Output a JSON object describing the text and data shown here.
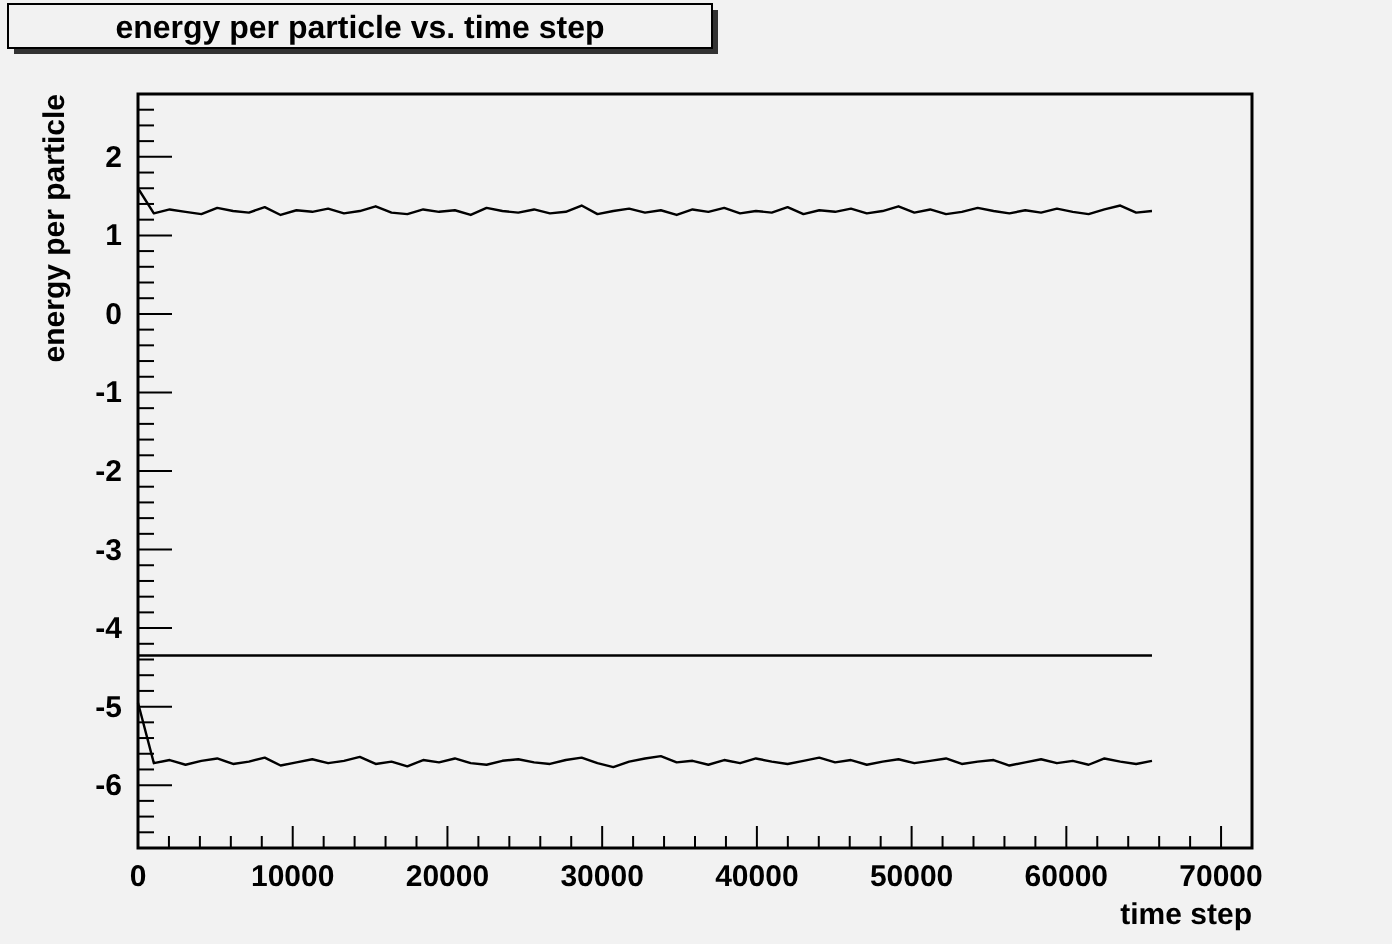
{
  "chart_data": {
    "type": "line",
    "title": "energy per particle vs. time step",
    "xlabel": "time step",
    "ylabel": "energy per particle",
    "x": [
      0,
      1024,
      2048,
      3072,
      4096,
      5120,
      6144,
      7168,
      8192,
      9216,
      10240,
      11264,
      12288,
      13312,
      14336,
      15360,
      16384,
      17408,
      18432,
      19456,
      20480,
      21504,
      22528,
      23552,
      24576,
      25600,
      26624,
      27648,
      28672,
      29696,
      30720,
      31744,
      32768,
      33792,
      34816,
      35840,
      36864,
      37888,
      38912,
      39936,
      40960,
      41984,
      43008,
      44032,
      45056,
      46080,
      47104,
      48128,
      49152,
      50176,
      51200,
      52224,
      53248,
      54272,
      55296,
      56320,
      57344,
      58368,
      59392,
      60416,
      61440,
      62464,
      63488,
      64512,
      65536
    ],
    "series": [
      {
        "color": "#000000",
        "values": [
          1.6,
          1.28,
          1.33,
          1.3,
          1.27,
          1.35,
          1.31,
          1.29,
          1.36,
          1.26,
          1.32,
          1.3,
          1.34,
          1.28,
          1.31,
          1.37,
          1.29,
          1.27,
          1.33,
          1.3,
          1.32,
          1.26,
          1.35,
          1.31,
          1.29,
          1.33,
          1.28,
          1.3,
          1.38,
          1.27,
          1.31,
          1.34,
          1.29,
          1.32,
          1.26,
          1.33,
          1.3,
          1.35,
          1.28,
          1.31,
          1.29,
          1.36,
          1.27,
          1.32,
          1.3,
          1.34,
          1.28,
          1.31,
          1.37,
          1.29,
          1.33,
          1.27,
          1.3,
          1.35,
          1.31,
          1.28,
          1.32,
          1.29,
          1.34,
          1.3,
          1.27,
          1.33,
          1.38,
          1.29,
          1.31
        ]
      },
      {
        "color": "#000000",
        "x": [
          0,
          65536
        ],
        "values": [
          -4.35,
          -4.35
        ]
      },
      {
        "color": "#000000",
        "values": [
          -4.95,
          -5.72,
          -5.68,
          -5.74,
          -5.69,
          -5.66,
          -5.73,
          -5.7,
          -5.65,
          -5.75,
          -5.71,
          -5.67,
          -5.72,
          -5.69,
          -5.64,
          -5.73,
          -5.7,
          -5.76,
          -5.68,
          -5.71,
          -5.66,
          -5.72,
          -5.74,
          -5.69,
          -5.67,
          -5.71,
          -5.73,
          -5.68,
          -5.65,
          -5.72,
          -5.77,
          -5.7,
          -5.66,
          -5.63,
          -5.71,
          -5.69,
          -5.74,
          -5.68,
          -5.72,
          -5.66,
          -5.7,
          -5.73,
          -5.69,
          -5.65,
          -5.71,
          -5.68,
          -5.74,
          -5.7,
          -5.67,
          -5.72,
          -5.69,
          -5.66,
          -5.73,
          -5.7,
          -5.68,
          -5.75,
          -5.71,
          -5.67,
          -5.72,
          -5.69,
          -5.74,
          -5.66,
          -5.7,
          -5.73,
          -5.69
        ]
      }
    ],
    "xlim": [
      0,
      72000
    ],
    "ylim": [
      -6.8,
      2.8
    ],
    "xticks": [
      0,
      {
        "value": 2000,
        "label": null
      },
      {
        "value": 4000,
        "label": null
      },
      {
        "value": 6000,
        "label": null
      },
      {
        "value": 8000,
        "label": null
      },
      10000,
      {
        "value": 12000,
        "label": null
      },
      {
        "value": 14000,
        "label": null
      },
      {
        "value": 16000,
        "label": null
      },
      {
        "value": 18000,
        "label": null
      },
      20000,
      {
        "value": 22000,
        "label": null
      },
      {
        "value": 24000,
        "label": null
      },
      {
        "value": 26000,
        "label": null
      },
      {
        "value": 28000,
        "label": null
      },
      30000,
      {
        "value": 32000,
        "label": null
      },
      {
        "value": 34000,
        "label": null
      },
      {
        "value": 36000,
        "label": null
      },
      {
        "value": 38000,
        "label": null
      },
      40000,
      {
        "value": 42000,
        "label": null
      },
      {
        "value": 44000,
        "label": null
      },
      {
        "value": 46000,
        "label": null
      },
      {
        "value": 48000,
        "label": null
      },
      50000,
      {
        "value": 52000,
        "label": null
      },
      {
        "value": 54000,
        "label": null
      },
      {
        "value": 56000,
        "label": null
      },
      {
        "value": 58000,
        "label": null
      },
      60000,
      {
        "value": 62000,
        "label": null
      },
      {
        "value": 64000,
        "label": null
      },
      {
        "value": 66000,
        "label": null
      },
      {
        "value": 68000,
        "label": null
      },
      70000
    ],
    "yticks": [
      {
        "value": -6.6,
        "label": null
      },
      {
        "value": -6.4,
        "label": null
      },
      {
        "value": -6.2,
        "label": null
      },
      -6,
      {
        "value": -5.8,
        "label": null
      },
      {
        "value": -5.6,
        "label": null
      },
      {
        "value": -5.4,
        "label": null
      },
      {
        "value": -5.2,
        "label": null
      },
      -5,
      {
        "value": -4.8,
        "label": null
      },
      {
        "value": -4.6,
        "label": null
      },
      {
        "value": -4.4,
        "label": null
      },
      {
        "value": -4.2,
        "label": null
      },
      -4,
      {
        "value": -3.8,
        "label": null
      },
      {
        "value": -3.6,
        "label": null
      },
      {
        "value": -3.4,
        "label": null
      },
      {
        "value": -3.2,
        "label": null
      },
      -3,
      {
        "value": -2.8,
        "label": null
      },
      {
        "value": -2.6,
        "label": null
      },
      {
        "value": -2.4,
        "label": null
      },
      {
        "value": -2.2,
        "label": null
      },
      -2,
      {
        "value": -1.8,
        "label": null
      },
      {
        "value": -1.6,
        "label": null
      },
      {
        "value": -1.4,
        "label": null
      },
      {
        "value": -1.2,
        "label": null
      },
      -1,
      {
        "value": -0.8,
        "label": null
      },
      {
        "value": -0.6,
        "label": null
      },
      {
        "value": -0.4,
        "label": null
      },
      {
        "value": -0.2,
        "label": null
      },
      0,
      {
        "value": 0.2,
        "label": null
      },
      {
        "value": 0.4,
        "label": null
      },
      {
        "value": 0.6,
        "label": null
      },
      {
        "value": 0.8,
        "label": null
      },
      1,
      {
        "value": 1.2,
        "label": null
      },
      {
        "value": 1.4,
        "label": null
      },
      {
        "value": 1.6,
        "label": null
      },
      {
        "value": 1.8,
        "label": null
      },
      2,
      {
        "value": 2.2,
        "label": null
      },
      {
        "value": 2.4,
        "label": null
      },
      {
        "value": 2.6,
        "label": null
      }
    ],
    "marker": "none",
    "line_style": "solid"
  }
}
